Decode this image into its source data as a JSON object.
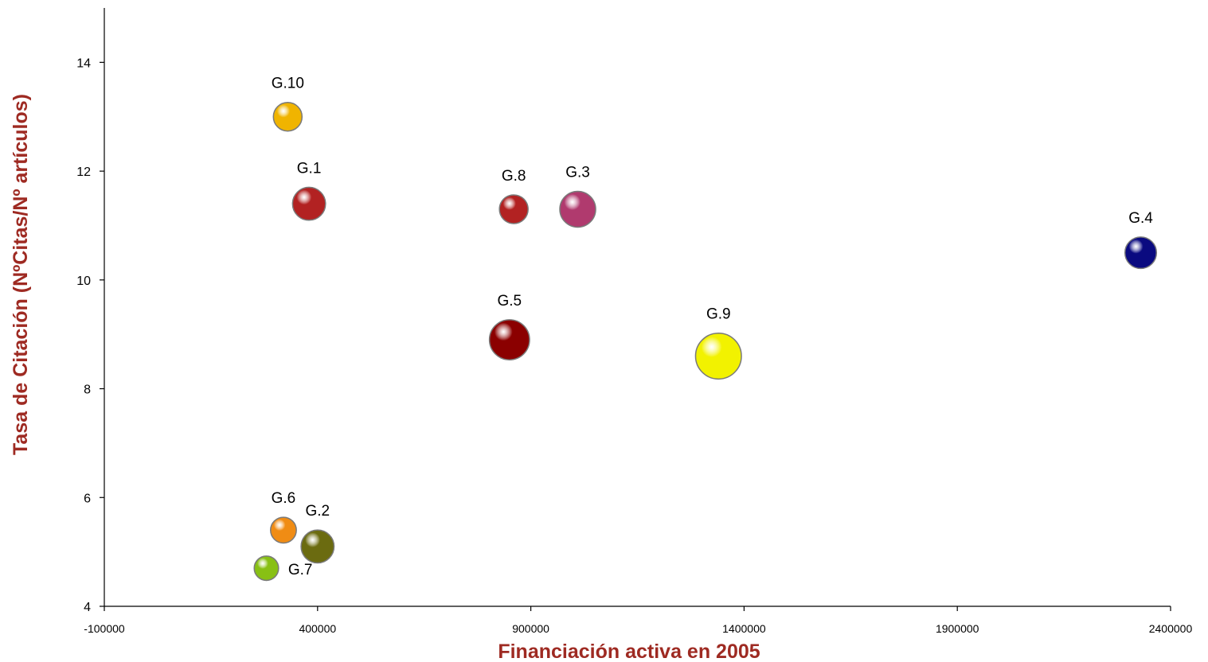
{
  "chart_data": {
    "type": "bubble",
    "title": "",
    "xlabel": "Financiación activa en 2005",
    "ylabel": "Tasa de Citación (NºCitas/Nº artículos)",
    "axis_title_color": "#9e2a22",
    "xlim": [
      -100000,
      2400000
    ],
    "ylim": [
      4,
      15
    ],
    "x_ticks": [
      -100000,
      400000,
      900000,
      1400000,
      1900000,
      2400000
    ],
    "x_tick_labels": [
      "-100000",
      "400000",
      "900000",
      "1400000",
      "1900000",
      "2400000"
    ],
    "y_ticks": [
      4,
      6,
      8,
      10,
      12,
      14
    ],
    "y_tick_labels": [
      "4",
      "6",
      "8",
      "10",
      "12",
      "14"
    ],
    "grid": false,
    "legend": "none",
    "points": [
      {
        "label": "G.1",
        "x": 380000,
        "y": 11.4,
        "size": 1.15,
        "color": "#b22222",
        "label_pos": "above"
      },
      {
        "label": "G.2",
        "x": 400000,
        "y": 5.1,
        "size": 1.15,
        "color": "#6b6b10",
        "label_pos": "above"
      },
      {
        "label": "G.3",
        "x": 1010000,
        "y": 11.3,
        "size": 1.25,
        "color": "#b03a6e",
        "label_pos": "above"
      },
      {
        "label": "G.4",
        "x": 2330000,
        "y": 10.5,
        "size": 1.1,
        "color": "#0a0a80",
        "label_pos": "above"
      },
      {
        "label": "G.5",
        "x": 850000,
        "y": 8.9,
        "size": 1.4,
        "color": "#8b0000",
        "label_pos": "above"
      },
      {
        "label": "G.6",
        "x": 320000,
        "y": 5.4,
        "size": 0.9,
        "color": "#f08c14",
        "label_pos": "above"
      },
      {
        "label": "G.7",
        "x": 280000,
        "y": 4.7,
        "size": 0.85,
        "color": "#88c014",
        "label_pos": "right"
      },
      {
        "label": "G.8",
        "x": 860000,
        "y": 11.3,
        "size": 1.0,
        "color": "#b22222",
        "label_pos": "above"
      },
      {
        "label": "G.9",
        "x": 1340000,
        "y": 8.6,
        "size": 1.6,
        "color": "#f2f200",
        "label_pos": "above"
      },
      {
        "label": "G.10",
        "x": 330000,
        "y": 13.0,
        "size": 1.0,
        "color": "#f0b400",
        "label_pos": "above"
      }
    ]
  }
}
